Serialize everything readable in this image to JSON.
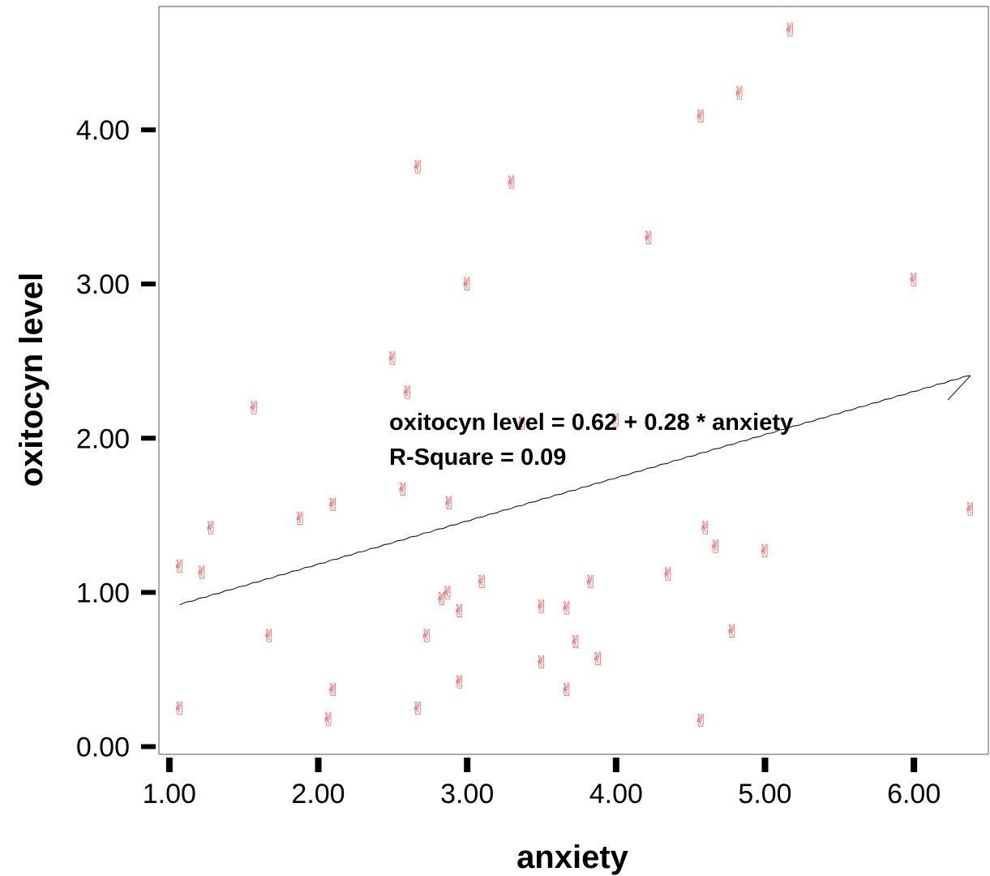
{
  "chart_data": {
    "type": "scatter",
    "xlabel": "anxiety",
    "ylabel": "oxitocyn level",
    "xlim": [
      0.93,
      6.5
    ],
    "ylim": [
      -0.05,
      4.8
    ],
    "x_ticks": [
      "1.00",
      "2.00",
      "3.00",
      "4.00",
      "5.00",
      "6.00"
    ],
    "y_ticks": [
      "0.00",
      "1.00",
      "2.00",
      "3.00",
      "4.00"
    ],
    "grid": false,
    "marker_symbol": "✌",
    "marker_color": "#ff3b3b",
    "series": [
      {
        "points": [
          [
            1.07,
            0.25
          ],
          [
            1.07,
            1.17
          ],
          [
            1.22,
            1.13
          ],
          [
            1.28,
            1.42
          ],
          [
            1.57,
            2.2
          ],
          [
            1.67,
            0.72
          ],
          [
            1.88,
            1.48
          ],
          [
            2.07,
            0.18
          ],
          [
            2.1,
            0.37
          ],
          [
            2.1,
            1.57
          ],
          [
            2.5,
            2.52
          ],
          [
            2.57,
            1.67
          ],
          [
            2.6,
            2.3
          ],
          [
            2.67,
            3.76
          ],
          [
            2.67,
            0.25
          ],
          [
            2.73,
            0.72
          ],
          [
            2.83,
            0.96
          ],
          [
            2.87,
            1.0
          ],
          [
            2.88,
            1.58
          ],
          [
            2.95,
            0.88
          ],
          [
            2.95,
            0.42
          ],
          [
            3.0,
            3.0
          ],
          [
            3.1,
            1.07
          ],
          [
            3.3,
            3.66
          ],
          [
            3.37,
            2.1
          ],
          [
            3.5,
            0.91
          ],
          [
            3.5,
            0.55
          ],
          [
            3.67,
            0.9
          ],
          [
            3.67,
            0.37
          ],
          [
            3.73,
            0.68
          ],
          [
            3.83,
            1.07
          ],
          [
            3.88,
            0.57
          ],
          [
            4.0,
            2.12
          ],
          [
            4.22,
            3.3
          ],
          [
            4.35,
            1.12
          ],
          [
            4.57,
            4.09
          ],
          [
            4.57,
            0.17
          ],
          [
            4.6,
            1.42
          ],
          [
            4.67,
            1.3
          ],
          [
            4.78,
            0.75
          ],
          [
            4.83,
            4.24
          ],
          [
            5.0,
            1.27
          ],
          [
            5.17,
            4.65
          ],
          [
            6.0,
            3.03
          ],
          [
            6.38,
            1.54
          ]
        ]
      }
    ],
    "fit_line": {
      "intercept": 0.62,
      "slope": 0.28,
      "x_range": [
        1.07,
        6.38
      ]
    },
    "annotations": [
      "oxitocyn level = 0.62 + 0.28 * anxiety",
      "R-Square = 0.09"
    ]
  }
}
